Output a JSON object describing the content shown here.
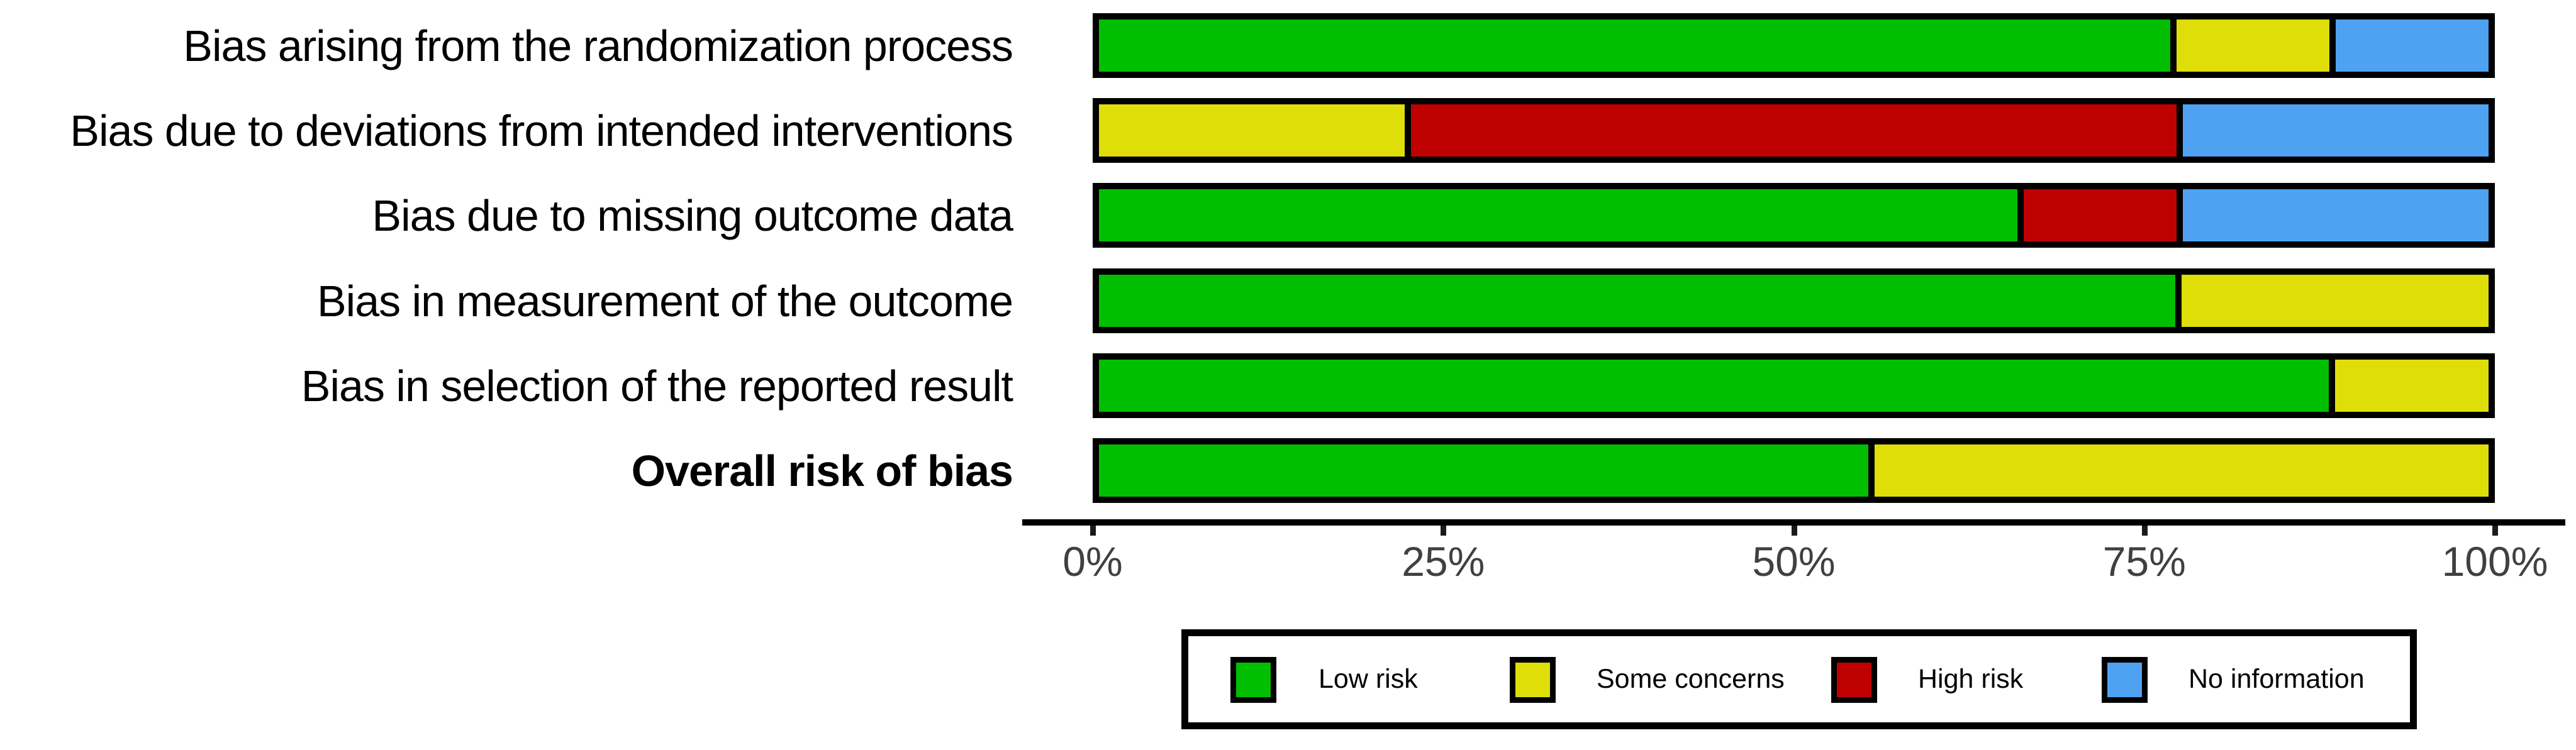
{
  "colors": {
    "low_risk": "#02BE00",
    "some_concerns": "#E0DE09",
    "high_risk": "#BF0000",
    "no_information": "#4FA1F2",
    "bar_outline": "#000000",
    "axis_line": "#000000",
    "axis_text": "#404040",
    "legend_border": "#000000",
    "background": "#FFFFFF"
  },
  "axis": {
    "tick_labels": [
      "0%",
      "25%",
      "50%",
      "75%",
      "100%"
    ],
    "range": [
      0,
      100
    ]
  },
  "legend": {
    "items": [
      {
        "key": "low_risk",
        "label": "Low risk"
      },
      {
        "key": "some_concerns",
        "label": "Some concerns"
      },
      {
        "key": "high_risk",
        "label": "High risk"
      },
      {
        "key": "no_information",
        "label": "No information"
      }
    ]
  },
  "chart_data": {
    "type": "bar",
    "orientation": "horizontal",
    "stacked": true,
    "title": "",
    "xlabel": "",
    "ylabel": "",
    "xlim": [
      0,
      100
    ],
    "x_tick_labels": [
      "0%",
      "25%",
      "50%",
      "75%",
      "100%"
    ],
    "grid": false,
    "legend_position": "bottom",
    "categories": [
      "Bias arising from the randomization process",
      "Bias due to deviations from intended interventions",
      "Bias due to missing outcome data",
      "Bias in measurement of the outcome",
      "Bias in selection of the reported result",
      "Overall risk of bias"
    ],
    "bold_category_index": 5,
    "series": [
      {
        "name": "Low risk",
        "color_key": "low_risk",
        "values": [
          77.8,
          0,
          66.7,
          77.8,
          88.9,
          55.6
        ]
      },
      {
        "name": "Some concerns",
        "color_key": "some_concerns",
        "values": [
          11.1,
          22.2,
          0,
          22.2,
          11.1,
          44.4
        ]
      },
      {
        "name": "High risk",
        "color_key": "high_risk",
        "values": [
          0,
          55.6,
          11.1,
          0,
          0,
          0
        ]
      },
      {
        "name": "No information",
        "color_key": "no_information",
        "values": [
          11.1,
          22.2,
          22.2,
          0,
          0,
          0
        ]
      }
    ]
  }
}
